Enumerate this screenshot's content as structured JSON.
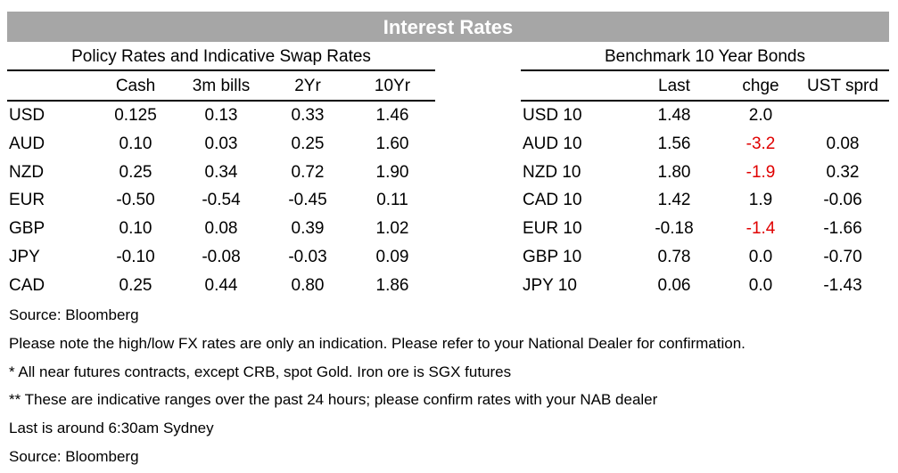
{
  "title": "Interest Rates",
  "policy": {
    "heading": "Policy Rates and Indicative Swap Rates",
    "columns": [
      "Cash",
      "3m bills",
      "2Yr",
      "10Yr"
    ],
    "rows": [
      {
        "label": "USD",
        "values": [
          "0.125",
          "0.13",
          "0.33",
          "1.46"
        ]
      },
      {
        "label": "AUD",
        "values": [
          "0.10",
          "0.03",
          "0.25",
          "1.60"
        ]
      },
      {
        "label": "NZD",
        "values": [
          "0.25",
          "0.34",
          "0.72",
          "1.90"
        ]
      },
      {
        "label": "EUR",
        "values": [
          "-0.50",
          "-0.54",
          "-0.45",
          "0.11"
        ]
      },
      {
        "label": "GBP",
        "values": [
          "0.10",
          "0.08",
          "0.39",
          "1.02"
        ]
      },
      {
        "label": "JPY",
        "values": [
          "-0.10",
          "-0.08",
          "-0.03",
          "0.09"
        ]
      },
      {
        "label": "CAD",
        "values": [
          "0.25",
          "0.44",
          "0.80",
          "1.86"
        ]
      }
    ]
  },
  "bonds": {
    "heading": "Benchmark 10 Year Bonds",
    "columns": [
      "Last",
      "chge",
      "UST sprd"
    ],
    "rows": [
      {
        "label": "USD 10",
        "values": [
          "1.48",
          "2.0",
          ""
        ]
      },
      {
        "label": "AUD 10",
        "values": [
          "1.56",
          "-3.2",
          "0.08"
        ]
      },
      {
        "label": "NZD 10",
        "values": [
          "1.80",
          "-1.9",
          "0.32"
        ]
      },
      {
        "label": "CAD 10",
        "values": [
          "1.42",
          "1.9",
          "-0.06"
        ]
      },
      {
        "label": "EUR 10",
        "values": [
          "-0.18",
          "-1.4",
          "-1.66"
        ]
      },
      {
        "label": "GBP 10",
        "values": [
          "0.78",
          "0.0",
          "-0.70"
        ]
      },
      {
        "label": "JPY 10",
        "values": [
          "0.06",
          "0.0",
          "-1.43"
        ]
      }
    ],
    "negative_color": "#e00000"
  },
  "notes": [
    "Source: Bloomberg",
    "Please note the high/low FX rates are only an indication. Please refer to your National Dealer for confirmation.",
    "* All near futures contracts, except CRB, spot Gold.  Iron ore is SGX futures",
    "** These are indicative ranges over the past 24 hours; please confirm rates with your NAB dealer",
    "Last is around 6:30am Sydney",
    "Source: Bloomberg"
  ]
}
